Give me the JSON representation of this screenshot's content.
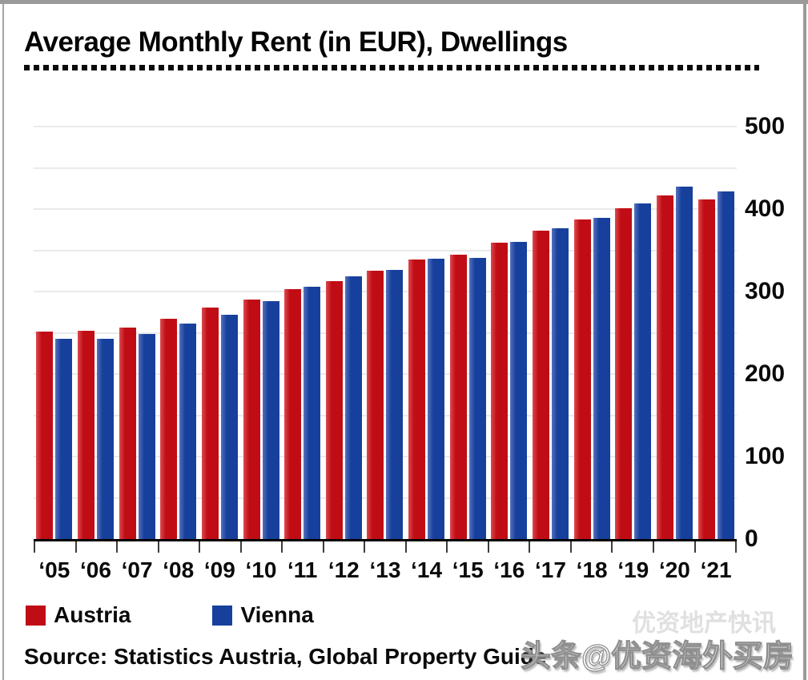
{
  "title": "Average Monthly Rent (in EUR), Dwellings",
  "chart_data": {
    "type": "bar",
    "title": "Average Monthly Rent (in EUR), Dwellings",
    "categories": [
      "‘05",
      "‘06",
      "‘07",
      "‘08",
      "‘09",
      "‘10",
      "‘11",
      "‘12",
      "‘13",
      "‘14",
      "‘15",
      "‘16",
      "‘17",
      "‘18",
      "‘19",
      "‘20",
      "‘21"
    ],
    "series": [
      {
        "name": "Austria",
        "color": "#c00d15",
        "values": [
          251,
          252,
          256,
          267,
          281,
          290,
          303,
          313,
          325,
          339,
          345,
          359,
          374,
          387,
          401,
          417,
          412
        ]
      },
      {
        "name": "Vienna",
        "color": "#16409c",
        "values": [
          243,
          243,
          249,
          261,
          272,
          288,
          306,
          318,
          326,
          340,
          341,
          360,
          377,
          389,
          407,
          427,
          421
        ]
      }
    ],
    "xlabel": "",
    "ylabel": "",
    "ylim": [
      0,
      500
    ],
    "yticks": [
      0,
      100,
      200,
      300,
      400,
      500
    ],
    "grid": true,
    "grid_step": 50,
    "legend_position": "bottom-left"
  },
  "legend": {
    "items": [
      {
        "label": "Austria",
        "color": "#c00d15"
      },
      {
        "label": "Vienna",
        "color": "#16409c"
      }
    ]
  },
  "source_line": "Source: Statistics Austria, Global Property Guide",
  "watermark": {
    "ghost": "优资地产快讯",
    "main": "头条@优资海外买房"
  },
  "colors": {
    "austria": "#c00d15",
    "vienna": "#16409c",
    "gridline": "#eaeaea",
    "axis": "#000000",
    "frame": "#9a9a9a"
  }
}
